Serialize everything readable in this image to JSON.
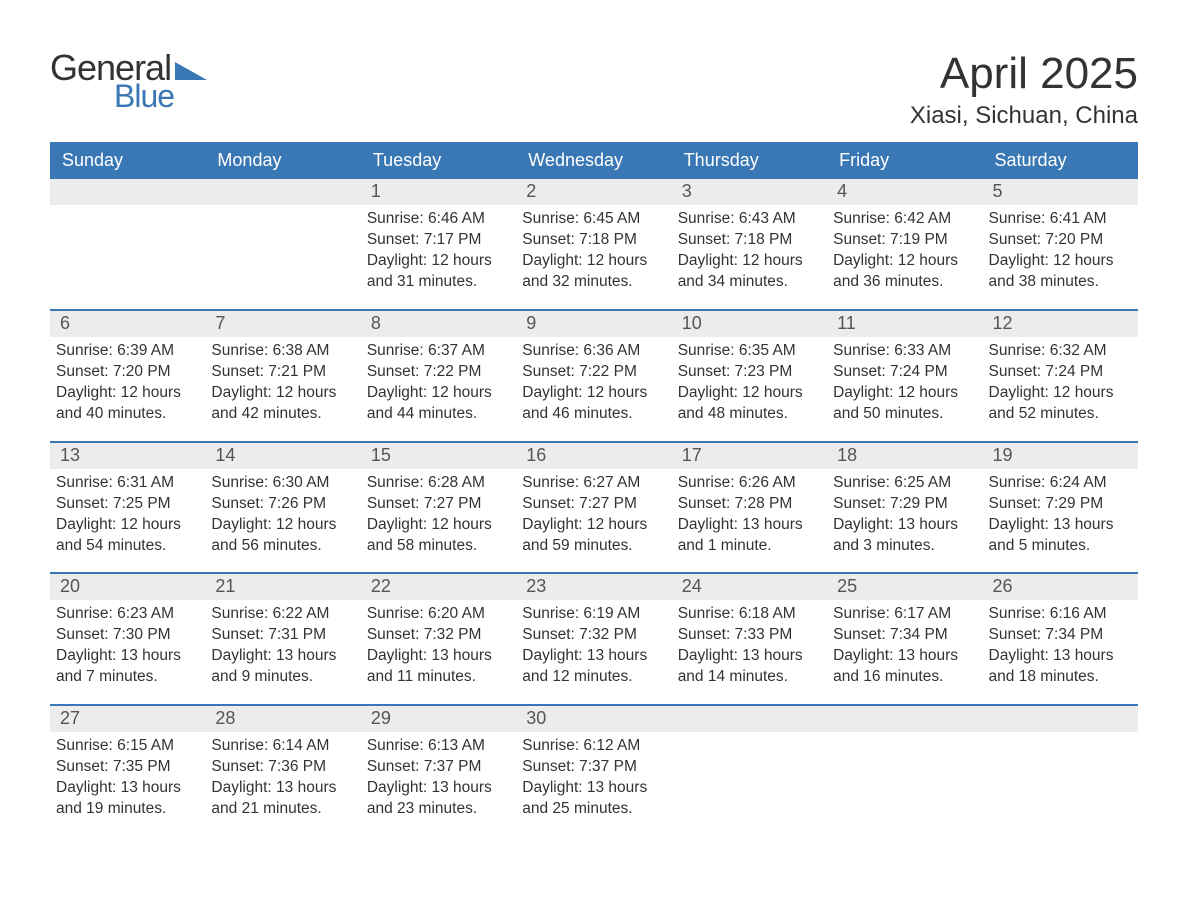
{
  "logo": {
    "text1": "General",
    "text2": "Blue"
  },
  "title": "April 2025",
  "location": "Xiasi, Sichuan, China",
  "colors": {
    "header_bg": "#3a78b5",
    "header_text": "#ffffff",
    "daynum_bg": "#ececec",
    "text": "#333333",
    "week_divider": "#3a78b5",
    "logo_blue": "#3a78b5"
  },
  "dayHeaders": [
    "Sunday",
    "Monday",
    "Tuesday",
    "Wednesday",
    "Thursday",
    "Friday",
    "Saturday"
  ],
  "weeks": [
    [
      {
        "n": "",
        "sunrise": "",
        "sunset": "",
        "daylight": ""
      },
      {
        "n": "",
        "sunrise": "",
        "sunset": "",
        "daylight": ""
      },
      {
        "n": "1",
        "sunrise": "Sunrise: 6:46 AM",
        "sunset": "Sunset: 7:17 PM",
        "daylight": "Daylight: 12 hours and 31 minutes."
      },
      {
        "n": "2",
        "sunrise": "Sunrise: 6:45 AM",
        "sunset": "Sunset: 7:18 PM",
        "daylight": "Daylight: 12 hours and 32 minutes."
      },
      {
        "n": "3",
        "sunrise": "Sunrise: 6:43 AM",
        "sunset": "Sunset: 7:18 PM",
        "daylight": "Daylight: 12 hours and 34 minutes."
      },
      {
        "n": "4",
        "sunrise": "Sunrise: 6:42 AM",
        "sunset": "Sunset: 7:19 PM",
        "daylight": "Daylight: 12 hours and 36 minutes."
      },
      {
        "n": "5",
        "sunrise": "Sunrise: 6:41 AM",
        "sunset": "Sunset: 7:20 PM",
        "daylight": "Daylight: 12 hours and 38 minutes."
      }
    ],
    [
      {
        "n": "6",
        "sunrise": "Sunrise: 6:39 AM",
        "sunset": "Sunset: 7:20 PM",
        "daylight": "Daylight: 12 hours and 40 minutes."
      },
      {
        "n": "7",
        "sunrise": "Sunrise: 6:38 AM",
        "sunset": "Sunset: 7:21 PM",
        "daylight": "Daylight: 12 hours and 42 minutes."
      },
      {
        "n": "8",
        "sunrise": "Sunrise: 6:37 AM",
        "sunset": "Sunset: 7:22 PM",
        "daylight": "Daylight: 12 hours and 44 minutes."
      },
      {
        "n": "9",
        "sunrise": "Sunrise: 6:36 AM",
        "sunset": "Sunset: 7:22 PM",
        "daylight": "Daylight: 12 hours and 46 minutes."
      },
      {
        "n": "10",
        "sunrise": "Sunrise: 6:35 AM",
        "sunset": "Sunset: 7:23 PM",
        "daylight": "Daylight: 12 hours and 48 minutes."
      },
      {
        "n": "11",
        "sunrise": "Sunrise: 6:33 AM",
        "sunset": "Sunset: 7:24 PM",
        "daylight": "Daylight: 12 hours and 50 minutes."
      },
      {
        "n": "12",
        "sunrise": "Sunrise: 6:32 AM",
        "sunset": "Sunset: 7:24 PM",
        "daylight": "Daylight: 12 hours and 52 minutes."
      }
    ],
    [
      {
        "n": "13",
        "sunrise": "Sunrise: 6:31 AM",
        "sunset": "Sunset: 7:25 PM",
        "daylight": "Daylight: 12 hours and 54 minutes."
      },
      {
        "n": "14",
        "sunrise": "Sunrise: 6:30 AM",
        "sunset": "Sunset: 7:26 PM",
        "daylight": "Daylight: 12 hours and 56 minutes."
      },
      {
        "n": "15",
        "sunrise": "Sunrise: 6:28 AM",
        "sunset": "Sunset: 7:27 PM",
        "daylight": "Daylight: 12 hours and 58 minutes."
      },
      {
        "n": "16",
        "sunrise": "Sunrise: 6:27 AM",
        "sunset": "Sunset: 7:27 PM",
        "daylight": "Daylight: 12 hours and 59 minutes."
      },
      {
        "n": "17",
        "sunrise": "Sunrise: 6:26 AM",
        "sunset": "Sunset: 7:28 PM",
        "daylight": "Daylight: 13 hours and 1 minute."
      },
      {
        "n": "18",
        "sunrise": "Sunrise: 6:25 AM",
        "sunset": "Sunset: 7:29 PM",
        "daylight": "Daylight: 13 hours and 3 minutes."
      },
      {
        "n": "19",
        "sunrise": "Sunrise: 6:24 AM",
        "sunset": "Sunset: 7:29 PM",
        "daylight": "Daylight: 13 hours and 5 minutes."
      }
    ],
    [
      {
        "n": "20",
        "sunrise": "Sunrise: 6:23 AM",
        "sunset": "Sunset: 7:30 PM",
        "daylight": "Daylight: 13 hours and 7 minutes."
      },
      {
        "n": "21",
        "sunrise": "Sunrise: 6:22 AM",
        "sunset": "Sunset: 7:31 PM",
        "daylight": "Daylight: 13 hours and 9 minutes."
      },
      {
        "n": "22",
        "sunrise": "Sunrise: 6:20 AM",
        "sunset": "Sunset: 7:32 PM",
        "daylight": "Daylight: 13 hours and 11 minutes."
      },
      {
        "n": "23",
        "sunrise": "Sunrise: 6:19 AM",
        "sunset": "Sunset: 7:32 PM",
        "daylight": "Daylight: 13 hours and 12 minutes."
      },
      {
        "n": "24",
        "sunrise": "Sunrise: 6:18 AM",
        "sunset": "Sunset: 7:33 PM",
        "daylight": "Daylight: 13 hours and 14 minutes."
      },
      {
        "n": "25",
        "sunrise": "Sunrise: 6:17 AM",
        "sunset": "Sunset: 7:34 PM",
        "daylight": "Daylight: 13 hours and 16 minutes."
      },
      {
        "n": "26",
        "sunrise": "Sunrise: 6:16 AM",
        "sunset": "Sunset: 7:34 PM",
        "daylight": "Daylight: 13 hours and 18 minutes."
      }
    ],
    [
      {
        "n": "27",
        "sunrise": "Sunrise: 6:15 AM",
        "sunset": "Sunset: 7:35 PM",
        "daylight": "Daylight: 13 hours and 19 minutes."
      },
      {
        "n": "28",
        "sunrise": "Sunrise: 6:14 AM",
        "sunset": "Sunset: 7:36 PM",
        "daylight": "Daylight: 13 hours and 21 minutes."
      },
      {
        "n": "29",
        "sunrise": "Sunrise: 6:13 AM",
        "sunset": "Sunset: 7:37 PM",
        "daylight": "Daylight: 13 hours and 23 minutes."
      },
      {
        "n": "30",
        "sunrise": "Sunrise: 6:12 AM",
        "sunset": "Sunset: 7:37 PM",
        "daylight": "Daylight: 13 hours and 25 minutes."
      },
      {
        "n": "",
        "sunrise": "",
        "sunset": "",
        "daylight": ""
      },
      {
        "n": "",
        "sunrise": "",
        "sunset": "",
        "daylight": ""
      },
      {
        "n": "",
        "sunrise": "",
        "sunset": "",
        "daylight": ""
      }
    ]
  ]
}
